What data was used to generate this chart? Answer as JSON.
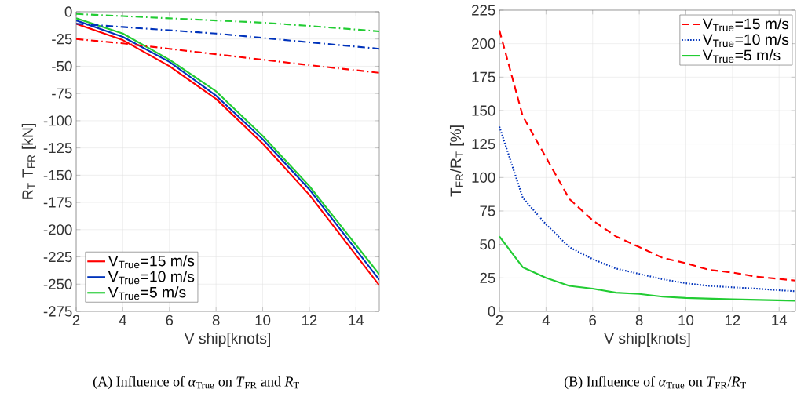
{
  "chart_data": [
    {
      "type": "line",
      "xlabel": "V ship[knots]",
      "ylabel": "R$_{T}$  T$_{FR}$  [kN]",
      "annotations": [
        "(A) Influence of *α*$_{True}$ on *T*$_{FR}$ and *R*$_{T}$"
      ],
      "xlim": [
        2,
        15
      ],
      "ylim": [
        -275,
        0
      ],
      "xticks": [
        2,
        4,
        6,
        8,
        10,
        12,
        14
      ],
      "yticks": [
        -275,
        -250,
        -225,
        -200,
        -175,
        -150,
        -125,
        -100,
        -75,
        -50,
        -25,
        0
      ],
      "grid": true,
      "legend": "bottom left",
      "line_style": "solid",
      "series": [
        {
          "name": "V$_{True}$=15 m/s",
          "color": "#ff0000",
          "x": [
            2,
            4,
            6,
            8,
            10,
            12,
            15
          ],
          "values": [
            -11,
            -26,
            -50,
            -80,
            -121,
            -168,
            -251
          ]
        },
        {
          "name": "V$_{True}$=10 m/s",
          "color": "#0033bb",
          "x": [
            2,
            4,
            6,
            8,
            10,
            12,
            15
          ],
          "values": [
            -8,
            -23,
            -46,
            -77,
            -117,
            -163,
            -246
          ]
        },
        {
          "name": "V$_{True}$=5 m/s",
          "color": "#22cc33",
          "x": [
            2,
            4,
            6,
            8,
            10,
            12,
            15
          ],
          "values": [
            -6,
            -20,
            -44,
            -73,
            -114,
            -160,
            -241
          ]
        },
        {
          "color": "#ff0000",
          "line_style": "dashdot",
          "x": [
            2,
            4,
            6,
            8,
            10,
            12,
            15
          ],
          "values": [
            -25,
            -29,
            -34,
            -39,
            -44,
            -49,
            -56
          ]
        },
        {
          "color": "#0033bb",
          "line_style": "dashdot",
          "x": [
            2,
            4,
            6,
            8,
            10,
            12,
            15
          ],
          "values": [
            -11,
            -14,
            -17,
            -20,
            -24,
            -28,
            -34
          ]
        },
        {
          "color": "#22cc33",
          "line_style": "dashdot",
          "x": [
            2,
            4,
            6,
            8,
            10,
            12,
            15
          ],
          "values": [
            -2,
            -4,
            -6,
            -8,
            -10,
            -13,
            -18
          ]
        }
      ]
    },
    {
      "type": "line",
      "xlabel": "V ship[knots]",
      "ylabel": "T$_{FR}$/R$_{T}$  [%]",
      "annotations": [
        "(B) Influence of *α*$_{True}$ on *T*$_{FR}$/*R*$_{T}$"
      ],
      "xlim": [
        2,
        14.7
      ],
      "ylim": [
        0,
        225
      ],
      "xticks": [
        2,
        4,
        6,
        8,
        10,
        12,
        14
      ],
      "yticks": [
        0,
        25,
        50,
        75,
        100,
        125,
        150,
        175,
        200,
        225
      ],
      "grid": true,
      "legend": "top right",
      "series": [
        {
          "name": "V$_{True}$=15 m/s",
          "color": "#ff0000",
          "line_style": "dashed",
          "x": [
            2,
            3,
            4,
            5,
            6,
            7,
            8,
            9,
            10,
            11,
            12,
            13,
            14.7
          ],
          "values": [
            210,
            146,
            115,
            84,
            68,
            56,
            48,
            40,
            36,
            31,
            29,
            26,
            23
          ]
        },
        {
          "name": "V$_{True}$=10 m/s",
          "color": "#0033bb",
          "line_style": "dotted",
          "x": [
            2,
            3,
            4,
            5,
            6,
            7,
            8,
            9,
            10,
            11,
            12,
            13,
            14.7
          ],
          "values": [
            138,
            85,
            65,
            48,
            39,
            32,
            28,
            24,
            21,
            19,
            18,
            17,
            15
          ]
        },
        {
          "name": "V$_{True}$=5 m/s",
          "color": "#22cc33",
          "line_style": "solid",
          "x": [
            2,
            3,
            4,
            5,
            6,
            7,
            8,
            9,
            10,
            12,
            14.7
          ],
          "values": [
            56,
            33,
            25,
            19,
            17,
            14,
            13,
            11,
            10,
            9,
            8
          ]
        }
      ]
    }
  ]
}
